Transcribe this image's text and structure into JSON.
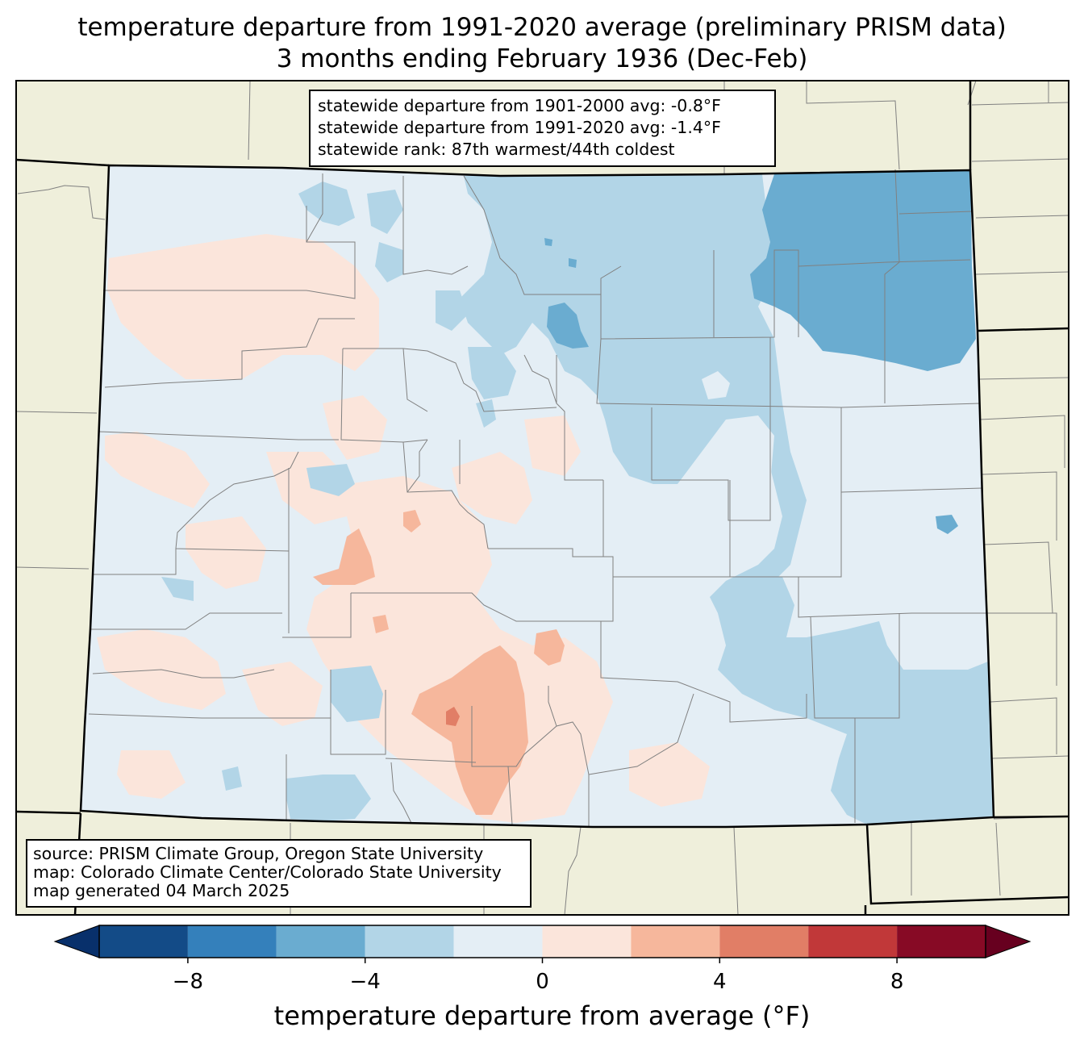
{
  "title": {
    "line1": "temperature departure from 1991-2020 average (preliminary PRISM data)",
    "line2": "3 months ending February 1936 (Dec-Feb)"
  },
  "stats": {
    "line1": "statewide departure from 1901-2000 avg: -0.8°F",
    "line2": "statewide departure from 1991-2020 avg: -1.4°F",
    "line3": "statewide rank: 87th warmest/44th coldest"
  },
  "source": {
    "line1": "source: PRISM Climate Group, Oregon State University",
    "line2": "map: Colorado Climate Center/Colorado State University",
    "line3": "map generated 04 March 2025"
  },
  "colorbar": {
    "label": "temperature departure from average (°F)",
    "ticks": [
      -8,
      -4,
      0,
      4,
      8
    ],
    "tick_labels": [
      "−8",
      "−4",
      "0",
      "4",
      "8"
    ],
    "bounds": [
      -10,
      -8,
      -6,
      -4,
      -2,
      0,
      2,
      4,
      6,
      8,
      10
    ],
    "colors": [
      "#134b87",
      "#3480bb",
      "#6aacd0",
      "#b2d5e7",
      "#e4eef5",
      "#fbe5db",
      "#f6b79c",
      "#e17e66",
      "#c13839",
      "#870a25"
    ],
    "under_color": "#08306b",
    "over_color": "#67001f"
  },
  "map_colors": {
    "background_land": "#efefdb",
    "border": "#000000",
    "county_lines": "#808080"
  }
}
